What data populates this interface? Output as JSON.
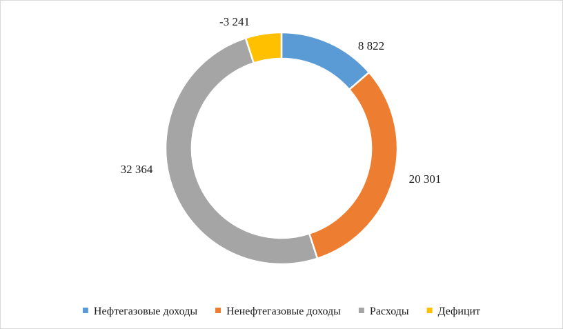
{
  "chart_data": {
    "type": "doughnut",
    "title": "",
    "series": [
      {
        "values": [
          8822,
          20301,
          32364,
          3241
        ],
        "labels": [
          "8 822",
          "20 301",
          "32 364",
          "-3 241"
        ]
      }
    ],
    "categories": [
      "Нефтегазовые доходы",
      "Ненефтегазовые доходы",
      "Расходы",
      "Дефицит"
    ],
    "colors": [
      "#5b9bd5",
      "#ed7d31",
      "#a5a5a5",
      "#ffc000"
    ],
    "legend": {
      "position": "bottom"
    },
    "hole": "large"
  }
}
